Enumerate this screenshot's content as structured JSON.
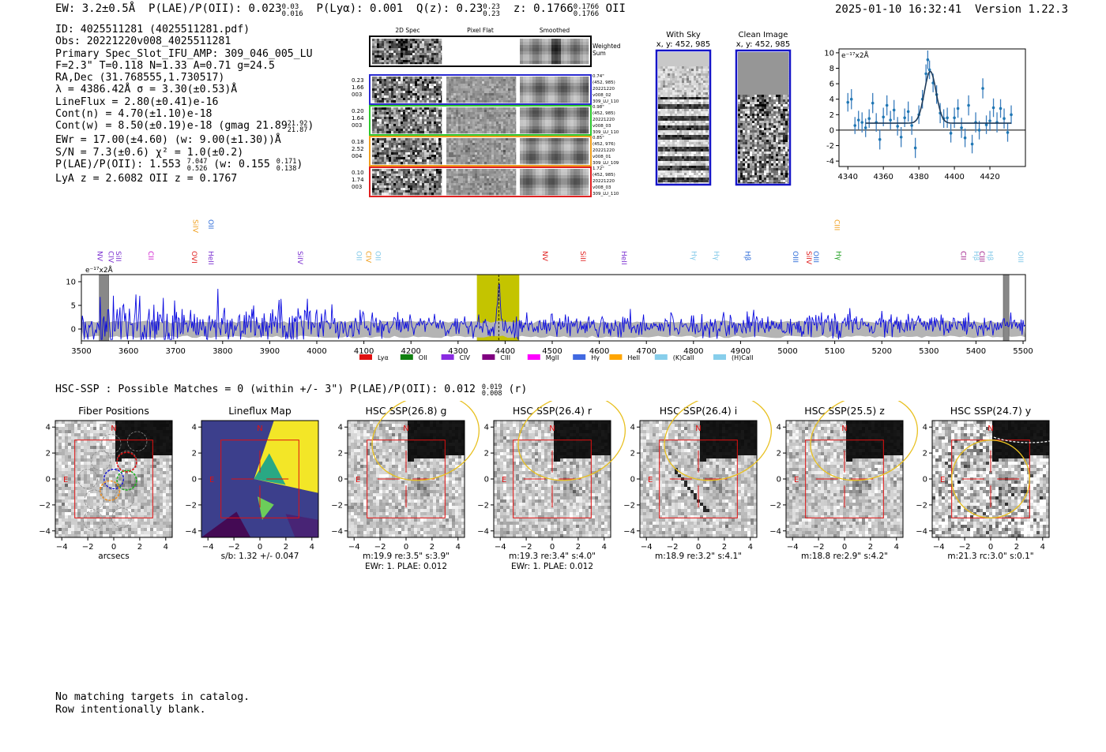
{
  "header": {
    "ew": "EW: 3.2±0.5Å",
    "plae": "P(LAE)/P(OII): 0.023",
    "plae_hi": "0.03",
    "plae_lo": "0.016",
    "plya": "P(Lyα): 0.001",
    "qz": "Q(z): 0.23",
    "qz_hi": "0.23",
    "qz_lo": "0.23",
    "z": "z: 0.1766",
    "z_hi": "0.1766",
    "z_lo": "0.1766",
    "z_line": "OII",
    "timestamp": "2025-01-10 16:32:41",
    "version": "Version 1.22.3"
  },
  "info": {
    "lines": [
      "ID: 4025511281 (4025511281.pdf)",
      "Obs: 20221220v008_4025511281",
      "Primary Spec_Slot_IFU_AMP: 309_046_005_LU",
      "F=2.3\"  T=0.118  N=1.33  A=0.71  g=24.5",
      "RA,Dec (31.768555,1.730517)",
      "λ = 4386.42Å  σ = 3.30(±0.53)Å",
      "LineFlux = 2.80(±0.41)e-16",
      "Cont(n) = 4.70(±1.10)e-18"
    ],
    "contw": "Cont(w) = 8.50(±0.19)e-18 (gmag 21.89",
    "contw_hi": "21.92",
    "contw_lo": "21.87",
    "ewr": "EWr = 17.00(±4.60) (w: 9.00(±1.30))Å",
    "sn": "S/N = 7.3(±0.6)  χ² = 1.0(±0.2)",
    "plae2": "P(LAE)/P(OII): 1.553",
    "plae2_hi": "7.047",
    "plae2_lo": "0.526",
    "plae2_w": "(w: 0.155",
    "plae2_w_hi": "0.171",
    "plae2_w_lo": "0.138",
    "lya_z": "LyA z = 2.6082  OII z = 0.1767"
  },
  "cutouts": {
    "col_titles": [
      "2D Spec",
      "Pixel Flat",
      "Smoothed"
    ],
    "weighted_sum": [
      "Weighted",
      "Sum"
    ],
    "rows": [
      {
        "left": [
          "0.23",
          "1.66",
          "003"
        ],
        "right": [
          "0.74\"",
          "(452, 985)",
          "20221220",
          "v008_02",
          "309_LU_110"
        ],
        "color": "#2b2bd0"
      },
      {
        "left": [
          "0.20",
          "1.64",
          "003"
        ],
        "right": [
          "0.98\"",
          "(452, 985)",
          "20221220",
          "v008_03",
          "309_LU_110"
        ],
        "color": "#2ec72e"
      },
      {
        "left": [
          "0.18",
          "2.52",
          "004"
        ],
        "right": [
          "0.85\"",
          "(452, 976)",
          "20221220",
          "v008_01",
          "309_LU_109"
        ],
        "color": "#f0a020"
      },
      {
        "left": [
          "0.10",
          "1.74",
          "003"
        ],
        "right": [
          "1.72\"",
          "(452, 985)",
          "20221220",
          "v008_03",
          "309_LU_110"
        ],
        "color": "#e02020"
      }
    ]
  },
  "sky": {
    "with_sky": [
      "With Sky",
      "x, y: 452, 985"
    ],
    "clean": [
      "Clean Image",
      "x, y: 452, 985"
    ]
  },
  "hsc_line": {
    "text": "HSC-SSP : Possible Matches = 0 (within +/- 3\")  P(LAE)/P(OII): 0.012",
    "hi": "0.019",
    "lo": "0.008",
    "band": "(r)"
  },
  "panels": [
    {
      "title": "Fiber Positions",
      "caption1": "arcsecs",
      "caption2": ""
    },
    {
      "title": "Lineflux Map",
      "caption1": "s/b: 1.32 +/- 0.047",
      "caption2": ""
    },
    {
      "title": "HSC SSP(26.8) g",
      "caption1": "m:19.9  re:3.5\"   s:3.9\"",
      "caption2": "EWr: 1. PLAE: 0.012"
    },
    {
      "title": "HSC SSP(26.4) r",
      "caption1": "m:19.3  re:3.4\"  s:4.0\"",
      "caption2": "EWr: 1. PLAE: 0.012"
    },
    {
      "title": "HSC SSP(26.4) i",
      "caption1": "m:18.9  re:3.2\"  s:4.1\"",
      "caption2": ""
    },
    {
      "title": "HSC SSP(25.5) z",
      "caption1": "m:18.8  re:2.9\"  s:4.2\"",
      "caption2": ""
    },
    {
      "title": "HSC SSP(24.7) y",
      "caption1": "m:21.3  rc:3.0\"  s:0.1\"",
      "caption2": ""
    }
  ],
  "footer": {
    "line1": "No matching targets in catalog.",
    "line2": "Row intentionally blank."
  },
  "chart_data": [
    {
      "type": "scatter",
      "panel": "line-fit",
      "ylabel": "e⁻¹⁷x2Å",
      "xlim": [
        4335,
        4440
      ],
      "ylim": [
        -4.7,
        10.5
      ],
      "xticks": [
        4340,
        4360,
        4380,
        4400,
        4420
      ],
      "yticks": [
        -4,
        -2,
        0,
        2,
        4,
        6,
        8,
        10
      ],
      "fit": {
        "center": 4386.4,
        "sigma": 3.3,
        "amplitude": 6.7,
        "continuum": 0.9
      },
      "points": [
        [
          4340,
          3.6,
          1.2
        ],
        [
          4342,
          4.0,
          1.3
        ],
        [
          4344,
          0.6,
          1.1
        ],
        [
          4346,
          1.3,
          1.2
        ],
        [
          4348,
          1.0,
          1.3
        ],
        [
          4350,
          0.3,
          1.2
        ],
        [
          4352,
          1.5,
          1.2
        ],
        [
          4354,
          3.5,
          1.3
        ],
        [
          4356,
          1.0,
          1.2
        ],
        [
          4358,
          -1.2,
          1.3
        ],
        [
          4360,
          1.7,
          1.2
        ],
        [
          4362,
          3.2,
          1.3
        ],
        [
          4364,
          1.3,
          1.2
        ],
        [
          4366,
          2.6,
          1.3
        ],
        [
          4368,
          0.5,
          1.2
        ],
        [
          4370,
          -0.9,
          1.3
        ],
        [
          4372,
          1.6,
          1.2
        ],
        [
          4374,
          2.4,
          1.3
        ],
        [
          4376,
          0.6,
          1.2
        ],
        [
          4378,
          -2.3,
          1.3
        ],
        [
          4380,
          2.0,
          1.2
        ],
        [
          4382,
          4.0,
          1.2
        ],
        [
          4384,
          7.3,
          1.2
        ],
        [
          4385,
          9.1,
          1.2
        ],
        [
          4386,
          7.8,
          1.2
        ],
        [
          4388,
          6.1,
          1.2
        ],
        [
          4390,
          4.6,
          1.2
        ],
        [
          4392,
          2.2,
          1.3
        ],
        [
          4394,
          1.5,
          1.2
        ],
        [
          4396,
          1.6,
          1.3
        ],
        [
          4398,
          -0.4,
          1.2
        ],
        [
          4400,
          1.6,
          1.3
        ],
        [
          4402,
          2.8,
          1.2
        ],
        [
          4404,
          0.3,
          1.3
        ],
        [
          4406,
          -1.0,
          1.2
        ],
        [
          4408,
          3.2,
          1.3
        ],
        [
          4410,
          -1.8,
          1.2
        ],
        [
          4412,
          1.0,
          1.3
        ],
        [
          4414,
          0.0,
          1.2
        ],
        [
          4416,
          5.4,
          1.3
        ],
        [
          4418,
          0.7,
          1.2
        ],
        [
          4420,
          1.2,
          1.3
        ],
        [
          4422,
          2.9,
          1.2
        ],
        [
          4424,
          1.0,
          1.3
        ],
        [
          4426,
          2.8,
          1.2
        ],
        [
          4428,
          1.5,
          1.3
        ],
        [
          4430,
          -0.3,
          1.2
        ],
        [
          4432,
          2.0,
          1.2
        ]
      ]
    },
    {
      "type": "line",
      "panel": "full-spectrum",
      "ylabel": "e⁻¹⁷x2Å",
      "xlim": [
        3500,
        5505
      ],
      "ylim": [
        -2.5,
        11.5
      ],
      "xticks": [
        3500,
        3600,
        3700,
        3800,
        3900,
        4000,
        4100,
        4200,
        4300,
        4400,
        4500,
        4600,
        4700,
        4800,
        4900,
        5000,
        5100,
        5200,
        5300,
        5400,
        5500
      ],
      "yticks": [
        0,
        5,
        10
      ],
      "highlight": [
        4340,
        4430
      ],
      "line_center": 4386.4,
      "masked": [
        [
          3538,
          3558
        ],
        [
          5458,
          5470
        ]
      ],
      "spectrum_seed": 7,
      "line_labels": [
        {
          "name": "NV",
          "x": 3534,
          "color": "#7b2fd0",
          "high": false
        },
        {
          "name": "CIV",
          "x": 3558,
          "color": "#7b2fd0",
          "high": false
        },
        {
          "name": "SiII",
          "x": 3574,
          "color": "#7b2fd0",
          "high": false
        },
        {
          "name": "CII",
          "x": 3643,
          "color": "#d020d0",
          "high": false
        },
        {
          "name": "OVI",
          "x": 3735,
          "color": "#e02020",
          "high": false
        },
        {
          "name": "SiIV",
          "x": 3737,
          "color": "#f0a020",
          "high": true
        },
        {
          "name": "HeII",
          "x": 3770,
          "color": "#7b2fd0",
          "high": false
        },
        {
          "name": "OII",
          "x": 3770,
          "color": "#2b6ad8",
          "high": true
        },
        {
          "name": "SiIV",
          "x": 3960,
          "color": "#7b2fd0",
          "high": false
        },
        {
          "name": "OII",
          "x": 4085,
          "color": "#80c8e8",
          "high": false
        },
        {
          "name": "CIV",
          "x": 4105,
          "color": "#f0a020",
          "high": false
        },
        {
          "name": "OII",
          "x": 4125,
          "color": "#80c8e8",
          "high": false
        },
        {
          "name": "NV",
          "x": 4480,
          "color": "#e02020",
          "high": false
        },
        {
          "name": "SiII",
          "x": 4560,
          "color": "#e02020",
          "high": false
        },
        {
          "name": "HeII",
          "x": 4648,
          "color": "#7b2fd0",
          "high": false
        },
        {
          "name": "Hγ",
          "x": 4796,
          "color": "#80c8e8",
          "high": false
        },
        {
          "name": "Hγ",
          "x": 4844,
          "color": "#80c8e8",
          "high": false
        },
        {
          "name": "Hβ",
          "x": 4910,
          "color": "#2b6ad8",
          "high": false
        },
        {
          "name": "OIII",
          "x": 5012,
          "color": "#2b6ad8",
          "high": false
        },
        {
          "name": "SiIV",
          "x": 5040,
          "color": "#e02020",
          "high": false
        },
        {
          "name": "OIII",
          "x": 5055,
          "color": "#2b6ad8",
          "high": false
        },
        {
          "name": "Hγ",
          "x": 5103,
          "color": "#20a020",
          "high": false
        },
        {
          "name": "CIII",
          "x": 5100,
          "color": "#f0a020",
          "high": true
        },
        {
          "name": "CII",
          "x": 5368,
          "color": "#a0208a",
          "high": false
        },
        {
          "name": "Hβ",
          "x": 5396,
          "color": "#80c8e8",
          "high": false
        },
        {
          "name": "CIII",
          "x": 5408,
          "color": "#a0208a",
          "high": false
        },
        {
          "name": "Hβ",
          "x": 5425,
          "color": "#80c8e8",
          "high": false
        },
        {
          "name": "OIII",
          "x": 5490,
          "color": "#80c8e8",
          "high": false
        }
      ],
      "legend": [
        {
          "label": "Lyα",
          "color": "#e01010"
        },
        {
          "label": "OII",
          "color": "#108010"
        },
        {
          "label": "CIV",
          "color": "#8a2be2"
        },
        {
          "label": "CIII",
          "color": "#800080"
        },
        {
          "label": "MgII",
          "color": "#ff00ff"
        },
        {
          "label": "Hγ",
          "color": "#4169e1"
        },
        {
          "label": "HeII",
          "color": "#ffa500"
        },
        {
          "label": "(K)CaII",
          "color": "#87ceeb"
        },
        {
          "label": "(H)CaII",
          "color": "#87ceeb"
        }
      ]
    },
    {
      "type": "image",
      "panel": "cutout-axes",
      "xlim": [
        -4.5,
        4.5
      ],
      "ylim": [
        -4.5,
        4.5
      ],
      "ticks": [
        -4,
        -2,
        0,
        2,
        4
      ],
      "compass": [
        "N",
        "E"
      ]
    }
  ]
}
